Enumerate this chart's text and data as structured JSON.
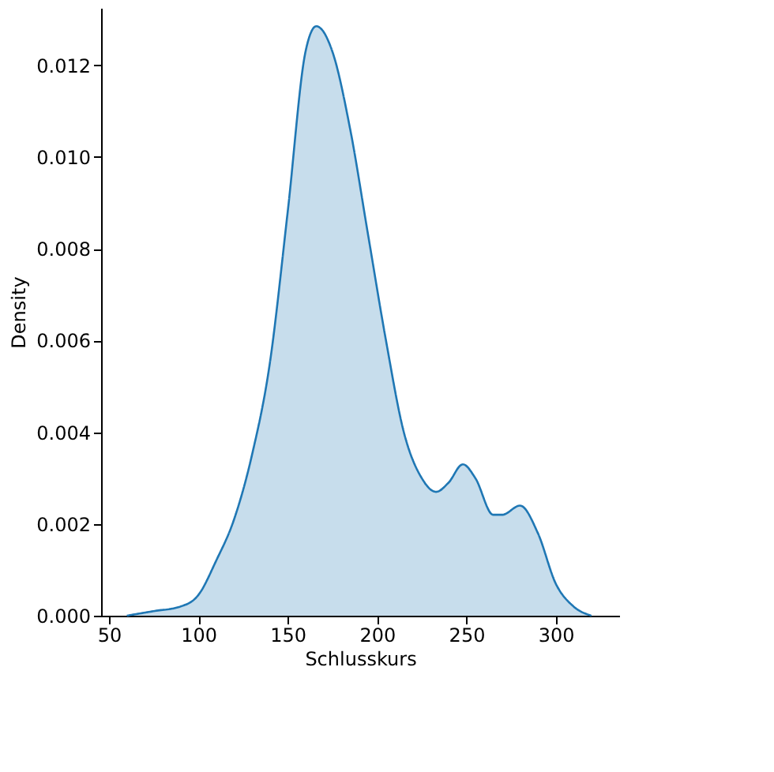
{
  "chart_data": {
    "type": "area",
    "xlabel": "Schlusskurs",
    "ylabel": "Density",
    "x": [
      60,
      75,
      90,
      100,
      110,
      120,
      130,
      140,
      150,
      160,
      166,
      175,
      185,
      195,
      205,
      215,
      225,
      233,
      240,
      248,
      255,
      265,
      270,
      280,
      290,
      300,
      310,
      320
    ],
    "series": [
      {
        "color": "#1f77b4",
        "values": [
          0.0,
          0.0001,
          0.0002,
          0.00045,
          0.0012,
          0.0021,
          0.0035,
          0.0055,
          0.0088,
          0.0123,
          0.01285,
          0.0123,
          0.0106,
          0.0083,
          0.006,
          0.004,
          0.003,
          0.0027,
          0.0029,
          0.0033,
          0.003,
          0.0022,
          0.0022,
          0.0024,
          0.0018,
          0.0007,
          0.0002,
          0.0
        ]
      }
    ],
    "xlim": [
      45.6,
      335.5
    ],
    "ylim": [
      0,
      0.01325
    ],
    "xticks": [
      50,
      100,
      150,
      200,
      250,
      300
    ],
    "yticks": [
      {
        "value": 0,
        "label": "0.000"
      },
      {
        "value": 0.002,
        "label": "0.002"
      },
      {
        "value": 0.004,
        "label": "0.004"
      },
      {
        "value": 0.006,
        "label": "0.006"
      },
      {
        "value": 0.008,
        "label": "0.008"
      },
      {
        "value": 0.01,
        "label": "0.010"
      },
      {
        "value": 0.012,
        "label": "0.012"
      }
    ],
    "grid": false
  }
}
